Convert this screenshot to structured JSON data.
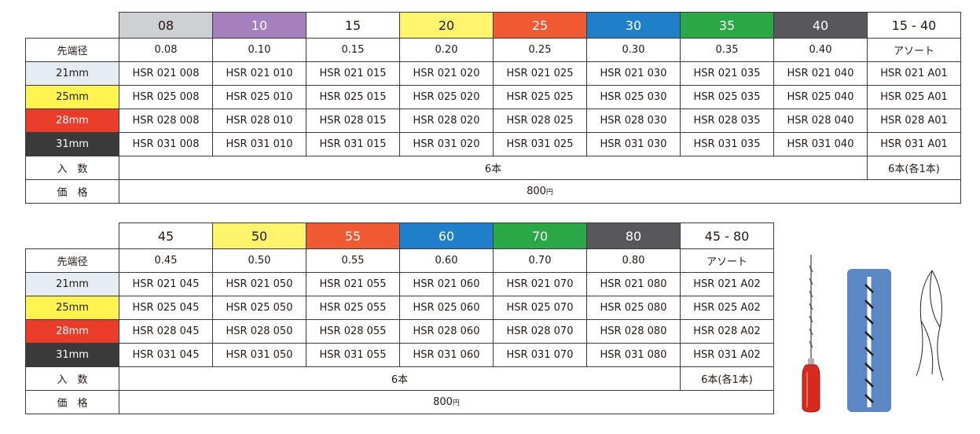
{
  "colors": {
    "size_08": "#cdcfd0",
    "size_10": "#a67fbf",
    "size_15": "#ffffff",
    "size_20": "#fff36b",
    "size_25": "#f05a32",
    "size_30": "#1f7fcb",
    "size_35": "#2aa846",
    "size_40": "#58585a",
    "size_45": "#ffffff",
    "size_50": "#fff36b",
    "size_55": "#f05a32",
    "size_60": "#1f7fcb",
    "size_70": "#2aa846",
    "size_80": "#58585a",
    "assort": "#ffffff",
    "len_21": "#e6ecf3",
    "len_25": "#fff34f",
    "len_28": "#ea3c28",
    "len_31": "#3a3a3a",
    "handle_red": "#d42a20",
    "file_panel_blue": "#5b88c4"
  },
  "table1": {
    "sizes": [
      {
        "label": "08",
        "diameter": "0.08",
        "color": "#cdcfd0",
        "text_color": "#231815"
      },
      {
        "label": "10",
        "diameter": "0.10",
        "color": "#a67fbf",
        "text_color": "#ffffff"
      },
      {
        "label": "15",
        "diameter": "0.15",
        "color": "#ffffff",
        "text_color": "#231815"
      },
      {
        "label": "20",
        "diameter": "0.20",
        "color": "#fff36b",
        "text_color": "#231815"
      },
      {
        "label": "25",
        "diameter": "0.25",
        "color": "#f05a32",
        "text_color": "#ffffff"
      },
      {
        "label": "30",
        "diameter": "0.30",
        "color": "#1f7fcb",
        "text_color": "#ffffff"
      },
      {
        "label": "35",
        "diameter": "0.35",
        "color": "#2aa846",
        "text_color": "#ffffff"
      },
      {
        "label": "40",
        "diameter": "0.40",
        "color": "#58585a",
        "text_color": "#ffffff"
      },
      {
        "label": "15 - 40",
        "diameter": "アソート",
        "color": "#ffffff",
        "text_color": "#231815"
      }
    ],
    "diameter_label": "先端径",
    "lengths": [
      {
        "label": "21mm",
        "color": "#e6ecf3",
        "text_color": "#231815",
        "codes": [
          "HSR 021 008",
          "HSR 021 010",
          "HSR 021 015",
          "HSR 021 020",
          "HSR 021 025",
          "HSR 021 030",
          "HSR 021 035",
          "HSR 021 040",
          "HSR 021 A01"
        ]
      },
      {
        "label": "25mm",
        "color": "#fff34f",
        "text_color": "#231815",
        "codes": [
          "HSR 025 008",
          "HSR 025 010",
          "HSR 025 015",
          "HSR 025 020",
          "HSR 025 025",
          "HSR 025 030",
          "HSR 025 035",
          "HSR 025 040",
          "HSR 025 A01"
        ]
      },
      {
        "label": "28mm",
        "color": "#ea3c28",
        "text_color": "#ffffff",
        "codes": [
          "HSR 028 008",
          "HSR 028 010",
          "HSR 028 015",
          "HSR 028 020",
          "HSR 028 025",
          "HSR 028 030",
          "HSR 028 035",
          "HSR 028 040",
          "HSR 028 A01"
        ]
      },
      {
        "label": "31mm",
        "color": "#3a3a3a",
        "text_color": "#ffffff",
        "codes": [
          "HSR 031 008",
          "HSR 031 010",
          "HSR 031 015",
          "HSR 031 020",
          "HSR 031 025",
          "HSR 031 030",
          "HSR 031 035",
          "HSR 031 040",
          "HSR 031 A01"
        ]
      }
    ],
    "quantity_label": "入　数",
    "quantity_value": "6本",
    "quantity_assort": "6本(各1本)",
    "price_label": "価　格",
    "price_value": "800",
    "price_unit": "円"
  },
  "table2": {
    "sizes": [
      {
        "label": "45",
        "diameter": "0.45",
        "color": "#ffffff",
        "text_color": "#231815"
      },
      {
        "label": "50",
        "diameter": "0.50",
        "color": "#fff36b",
        "text_color": "#231815"
      },
      {
        "label": "55",
        "diameter": "0.55",
        "color": "#f05a32",
        "text_color": "#ffffff"
      },
      {
        "label": "60",
        "diameter": "0.60",
        "color": "#1f7fcb",
        "text_color": "#ffffff"
      },
      {
        "label": "70",
        "diameter": "0.70",
        "color": "#2aa846",
        "text_color": "#ffffff"
      },
      {
        "label": "80",
        "diameter": "0.80",
        "color": "#58585a",
        "text_color": "#ffffff"
      },
      {
        "label": "45 - 80",
        "diameter": "アソート",
        "color": "#ffffff",
        "text_color": "#231815"
      }
    ],
    "diameter_label": "先端径",
    "lengths": [
      {
        "label": "21mm",
        "color": "#e6ecf3",
        "text_color": "#231815",
        "codes": [
          "HSR 021 045",
          "HSR 021 050",
          "HSR 021 055",
          "HSR 021 060",
          "HSR 021 070",
          "HSR 021 080",
          "HSR 021 A02"
        ]
      },
      {
        "label": "25mm",
        "color": "#fff34f",
        "text_color": "#231815",
        "codes": [
          "HSR 025 045",
          "HSR 025 050",
          "HSR 025 055",
          "HSR 025 060",
          "HSR 025 070",
          "HSR 025 080",
          "HSR 025 A02"
        ]
      },
      {
        "label": "28mm",
        "color": "#ea3c28",
        "text_color": "#ffffff",
        "codes": [
          "HSR 028 045",
          "HSR 028 050",
          "HSR 028 055",
          "HSR 028 060",
          "HSR 028 070",
          "HSR 028 080",
          "HSR 028 A02"
        ]
      },
      {
        "label": "31mm",
        "color": "#3a3a3a",
        "text_color": "#ffffff",
        "codes": [
          "HSR 031 045",
          "HSR 031 050",
          "HSR 031 055",
          "HSR 031 060",
          "HSR 031 070",
          "HSR 031 080",
          "HSR 031 A02"
        ]
      }
    ],
    "quantity_label": "入　数",
    "quantity_value": "6本",
    "quantity_assort": "6本(各1本)",
    "price_label": "価　格",
    "price_value": "800",
    "price_unit": "円"
  }
}
